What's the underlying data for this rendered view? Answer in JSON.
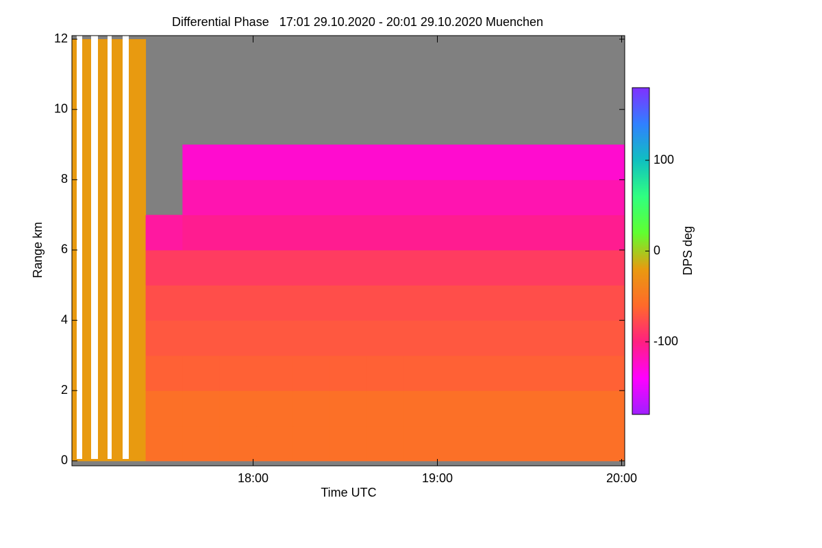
{
  "chart_data": {
    "type": "heatmap",
    "title": "Differential Phase   17:01 29.10.2020 - 20:01 29.10.2020 Muenchen",
    "x_label": "Time UTC",
    "y_label": "Range km",
    "colorbar_label": "DPS deg",
    "x_bins": [
      17.0167,
      17.2167,
      17.4167,
      17.6167,
      17.8167,
      18.0167,
      18.2167,
      18.4167,
      18.6167,
      18.8167,
      19.0167,
      19.2167,
      19.4167,
      19.6167,
      19.8167,
      20.0167
    ],
    "y_bins": [
      0,
      1,
      2,
      3,
      4,
      5,
      6,
      7,
      8,
      9,
      10,
      11,
      12
    ],
    "values": [
      [
        -20,
        -20,
        -55,
        -55,
        -55,
        -55,
        -55,
        -55,
        -55,
        -55,
        -55,
        -55,
        -55,
        -55,
        -55
      ],
      [
        -20,
        -20,
        -55,
        -55,
        -55,
        -55,
        -55,
        -55,
        -55,
        -55,
        -55,
        -55,
        -55,
        -55,
        -55
      ],
      [
        -20,
        -20,
        -65,
        -65,
        -65,
        -65,
        -65,
        -65,
        -65,
        -65,
        -65,
        -65,
        -65,
        -65,
        -65
      ],
      [
        -20,
        -20,
        -70,
        -70,
        -70,
        -70,
        -70,
        -70,
        -70,
        -70,
        -70,
        -70,
        -70,
        -70,
        -70
      ],
      [
        -20,
        -20,
        -75,
        -75,
        -75,
        -75,
        -75,
        -75,
        -75,
        -75,
        -75,
        -75,
        -75,
        -75,
        -75
      ],
      [
        -20,
        -20,
        -85,
        -85,
        -85,
        -85,
        -85,
        -85,
        -85,
        -85,
        -85,
        -85,
        -85,
        -85,
        -85
      ],
      [
        -20,
        -20,
        -110,
        -105,
        -105,
        -105,
        -105,
        -105,
        -105,
        -105,
        -105,
        -105,
        -105,
        -105,
        -105
      ],
      [
        -20,
        -20,
        null,
        -115,
        -115,
        -115,
        -115,
        -115,
        -115,
        -115,
        -115,
        -115,
        -115,
        -115,
        -115
      ],
      [
        -20,
        -20,
        null,
        -125,
        -125,
        -125,
        -125,
        -125,
        -125,
        -125,
        -125,
        -125,
        -125,
        -125,
        -125
      ],
      [
        -20,
        -20,
        null,
        null,
        null,
        null,
        null,
        null,
        null,
        null,
        null,
        null,
        null,
        null,
        null
      ],
      [
        -20,
        -20,
        null,
        null,
        null,
        null,
        null,
        null,
        null,
        null,
        null,
        null,
        null,
        null,
        null
      ],
      [
        -20,
        -20,
        null,
        null,
        null,
        null,
        null,
        null,
        null,
        null,
        null,
        null,
        null,
        null,
        null
      ]
    ],
    "xlim": [
      17.0167,
      20.0167
    ],
    "xticks": [
      {
        "value": 18,
        "label": "18:00"
      },
      {
        "value": 19,
        "label": "19:00"
      },
      {
        "value": 20,
        "label": "20:00"
      }
    ],
    "ylim": [
      -0.14,
      12.1
    ],
    "yticks": [
      0,
      2,
      4,
      6,
      8,
      10,
      12
    ],
    "clim": [
      -180,
      180
    ],
    "cticks": [
      -100,
      0,
      100
    ],
    "colormap": [
      "#a020ff",
      "#ff00ff",
      "#ff2080",
      "#ff6a2a",
      "#e89a10",
      "#60ff30",
      "#30ff80",
      "#10c0c0",
      "#3080ff",
      "#8030ff"
    ],
    "missing_color": "#808080"
  }
}
